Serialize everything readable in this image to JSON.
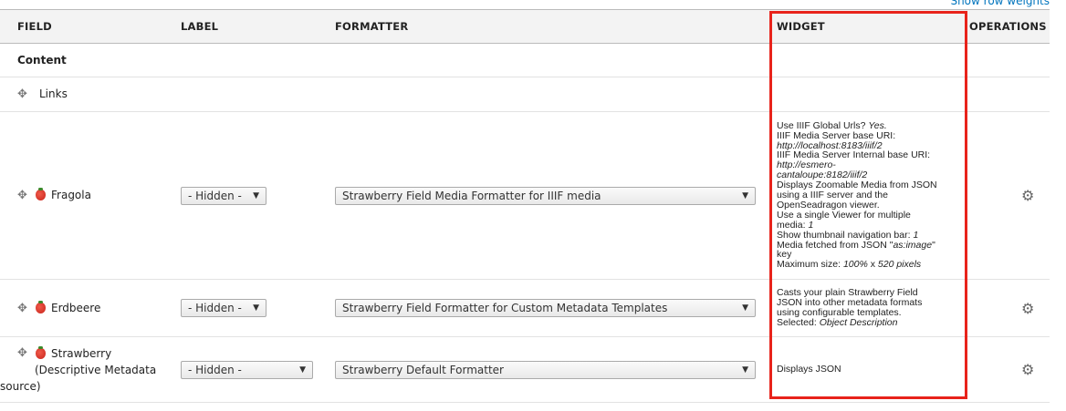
{
  "top_link": "Show row weights",
  "headers": {
    "field": "FIELD",
    "label": "LABEL",
    "formatter": "FORMATTER",
    "widget": "WIDGET",
    "operations": "OPERATIONS"
  },
  "region": "Content",
  "links_row": "Links",
  "highlight_color": "#e8231b",
  "rows": [
    {
      "field": "Fragola",
      "label": "- Hidden -",
      "formatter": "Strawberry Field Media Formatter for IIIF media",
      "summary": [
        [
          {
            "t": "Use IIIF Global Urls? "
          },
          {
            "t": "Yes.",
            "i": true
          }
        ],
        [
          {
            "t": "IIIF Media Server base URI:"
          }
        ],
        [
          {
            "t": "http://localhost:8183/iiif/2",
            "i": true
          }
        ],
        [
          {
            "t": "IIIF Media Server Internal base URI:"
          }
        ],
        [
          {
            "t": "http://esmero-",
            "i": true
          }
        ],
        [
          {
            "t": "cantaloupe:8182/iiif/2",
            "i": true
          }
        ],
        [
          {
            "t": "Displays Zoomable Media from JSON"
          }
        ],
        [
          {
            "t": "using a IIIF server and the"
          }
        ],
        [
          {
            "t": "OpenSeadragon viewer."
          }
        ],
        [
          {
            "t": "Use a single Viewer for multiple"
          }
        ],
        [
          {
            "t": "media: "
          },
          {
            "t": "1",
            "i": true
          }
        ],
        [
          {
            "t": "Show thumbnail navigation bar: "
          },
          {
            "t": "1",
            "i": true
          }
        ],
        [
          {
            "t": "Media fetched from JSON \""
          },
          {
            "t": "as:image",
            "i": true
          },
          {
            "t": "\""
          }
        ],
        [
          {
            "t": "key"
          }
        ],
        [
          {
            "t": "Maximum size: "
          },
          {
            "t": "100%",
            "i": true
          },
          {
            "t": " x "
          },
          {
            "t": "520 pixels",
            "i": true
          }
        ]
      ]
    },
    {
      "field": "Erdbeere",
      "label": "- Hidden -",
      "formatter": "Strawberry Field Formatter for Custom Metadata Templates",
      "summary": [
        [
          {
            "t": "Casts your plain Strawberry Field"
          }
        ],
        [
          {
            "t": "JSON into other metadata formats"
          }
        ],
        [
          {
            "t": "using configurable templates."
          }
        ],
        [
          {
            "t": "Selected: "
          },
          {
            "t": "Object Description",
            "i": true
          }
        ]
      ]
    },
    {
      "field": "Strawberry",
      "field_sub": "(Descriptive Metadata",
      "field_sub2": "source)",
      "label": "- Hidden -",
      "formatter": "Strawberry Default Formatter",
      "summary": [
        [
          {
            "t": "Displays JSON"
          }
        ]
      ]
    }
  ]
}
